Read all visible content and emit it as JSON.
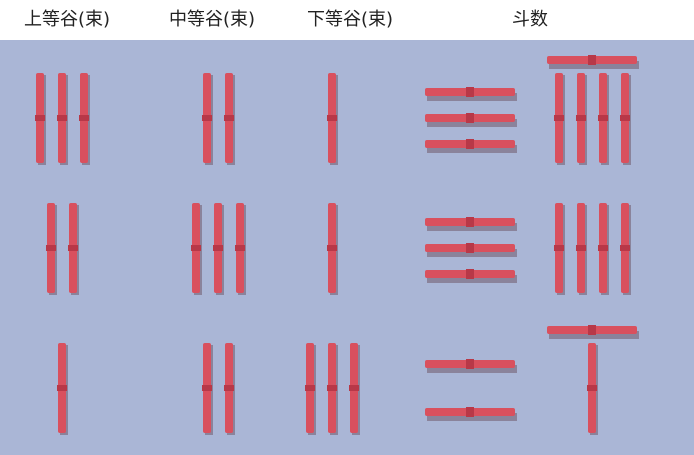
{
  "headers": [
    "上等谷(束)",
    "中等谷(束)",
    "下等谷(束)",
    "斗数"
  ],
  "rows": [
    [
      3,
      2,
      1,
      39
    ],
    [
      2,
      3,
      1,
      34
    ],
    [
      1,
      2,
      3,
      26
    ]
  ]
}
